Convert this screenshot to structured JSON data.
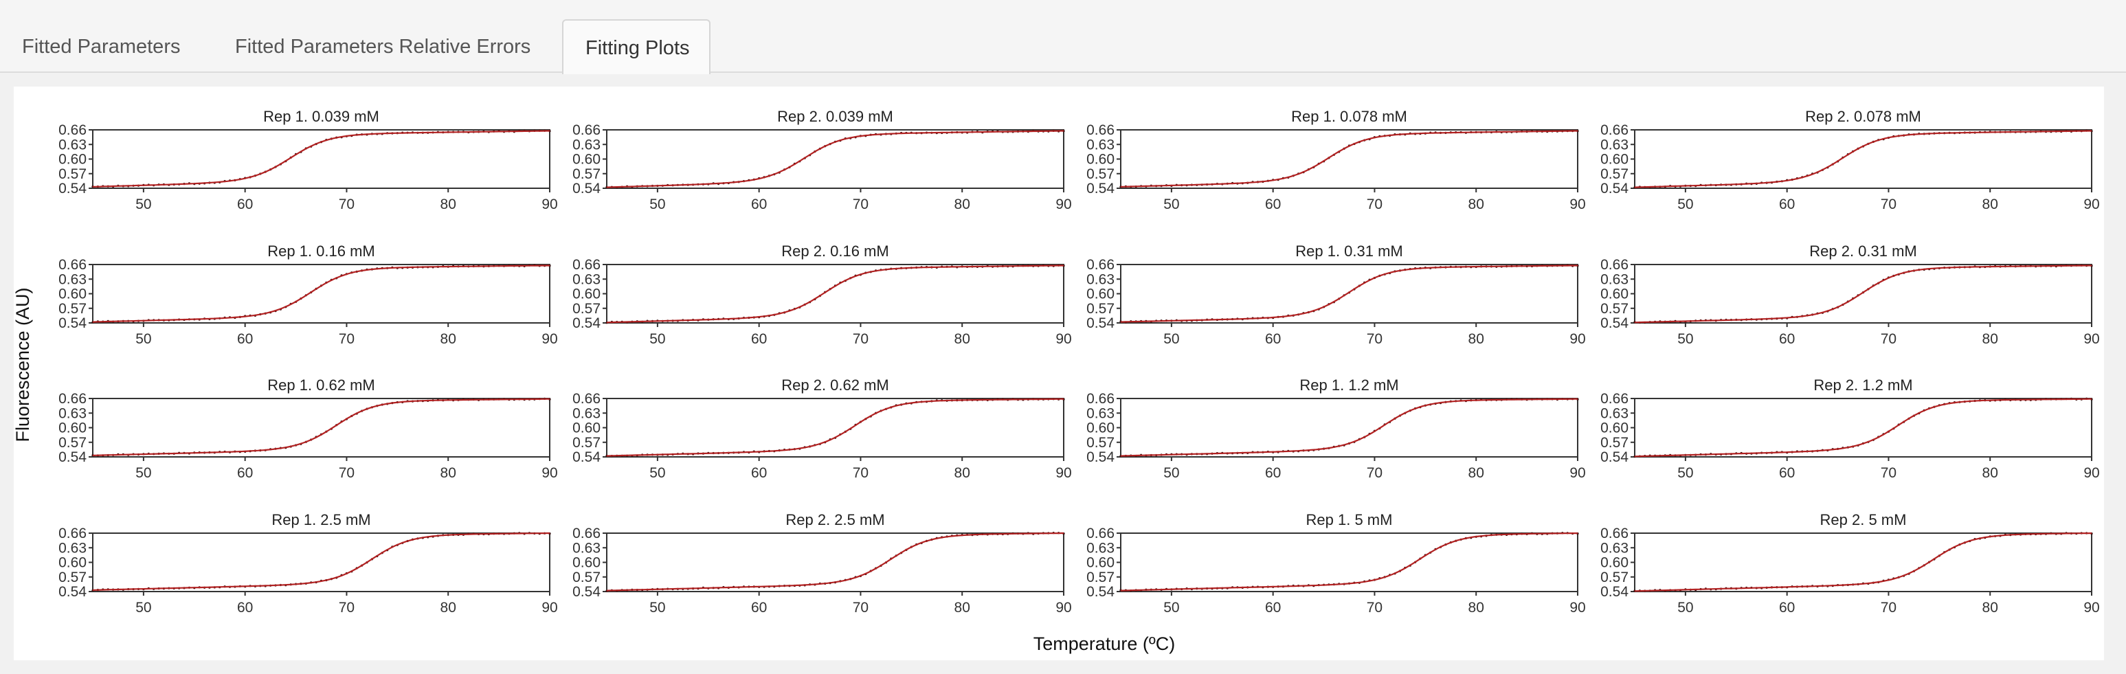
{
  "tabs": [
    {
      "label": "Fitted Parameters",
      "active": false
    },
    {
      "label": "Fitted Parameters Relative Errors",
      "active": false
    },
    {
      "label": "Fitting Plots",
      "active": true
    }
  ],
  "colors": {
    "points": "#3a0d0d",
    "fit": "#b22222",
    "frame": "#333333",
    "text": "#222222"
  },
  "chart_data": {
    "type": "scatter",
    "layout": "facet-grid 4x4",
    "xlabel": "Temperature (ºC)",
    "ylabel": "Fluorescence (AU)",
    "xlim": [
      45,
      90
    ],
    "ylim": [
      0.54,
      0.66
    ],
    "x_ticks": [
      50,
      60,
      70,
      80,
      90
    ],
    "y_ticks": [
      "0.54",
      "0.57",
      "0.60",
      "0.63",
      "0.66"
    ],
    "series_style": "black points with red fitted line",
    "panels": [
      {
        "title": "Rep 1. 0.039 mM",
        "tm": 64.5,
        "baseline_start": 0.543,
        "baseline_end": 0.57,
        "plateau_start": 0.645,
        "plateau_end": 0.658
      },
      {
        "title": "Rep 2. 0.039 mM",
        "tm": 64.5,
        "baseline_start": 0.542,
        "baseline_end": 0.57,
        "plateau_start": 0.645,
        "plateau_end": 0.658
      },
      {
        "title": "Rep 1. 0.078 mM",
        "tm": 65.5,
        "baseline_start": 0.543,
        "baseline_end": 0.568,
        "plateau_start": 0.645,
        "plateau_end": 0.658
      },
      {
        "title": "Rep 2. 0.078 mM",
        "tm": 65.5,
        "baseline_start": 0.542,
        "baseline_end": 0.568,
        "plateau_start": 0.645,
        "plateau_end": 0.658
      },
      {
        "title": "Rep 1. 0.16 mM",
        "tm": 66.5,
        "baseline_start": 0.542,
        "baseline_end": 0.566,
        "plateau_start": 0.648,
        "plateau_end": 0.658
      },
      {
        "title": "Rep 2. 0.16 mM",
        "tm": 66.5,
        "baseline_start": 0.541,
        "baseline_end": 0.566,
        "plateau_start": 0.647,
        "plateau_end": 0.658
      },
      {
        "title": "Rep 1. 0.31 mM",
        "tm": 67.5,
        "baseline_start": 0.542,
        "baseline_end": 0.564,
        "plateau_start": 0.648,
        "plateau_end": 0.658
      },
      {
        "title": "Rep 2. 0.31 mM",
        "tm": 67.5,
        "baseline_start": 0.541,
        "baseline_end": 0.564,
        "plateau_start": 0.648,
        "plateau_end": 0.658
      },
      {
        "title": "Rep 1. 0.62 mM",
        "tm": 69.0,
        "baseline_start": 0.543,
        "baseline_end": 0.566,
        "plateau_start": 0.65,
        "plateau_end": 0.659
      },
      {
        "title": "Rep 2. 0.62 mM",
        "tm": 69.5,
        "baseline_start": 0.542,
        "baseline_end": 0.566,
        "plateau_start": 0.65,
        "plateau_end": 0.659
      },
      {
        "title": "Rep 1. 1.2 mM",
        "tm": 71.0,
        "baseline_start": 0.542,
        "baseline_end": 0.566,
        "plateau_start": 0.651,
        "plateau_end": 0.659
      },
      {
        "title": "Rep 2. 1.2 mM",
        "tm": 71.0,
        "baseline_start": 0.541,
        "baseline_end": 0.566,
        "plateau_start": 0.651,
        "plateau_end": 0.659
      },
      {
        "title": "Rep 1. 2.5 mM",
        "tm": 72.5,
        "baseline_start": 0.543,
        "baseline_end": 0.566,
        "plateau_start": 0.651,
        "plateau_end": 0.66
      },
      {
        "title": "Rep 2. 2.5 mM",
        "tm": 73.0,
        "baseline_start": 0.542,
        "baseline_end": 0.566,
        "plateau_start": 0.651,
        "plateau_end": 0.66
      },
      {
        "title": "Rep 1. 5 mM",
        "tm": 74.5,
        "baseline_start": 0.542,
        "baseline_end": 0.566,
        "plateau_start": 0.651,
        "plateau_end": 0.66
      },
      {
        "title": "Rep 2. 5 mM",
        "tm": 74.5,
        "baseline_start": 0.541,
        "baseline_end": 0.566,
        "plateau_start": 0.651,
        "plateau_end": 0.66
      }
    ]
  }
}
